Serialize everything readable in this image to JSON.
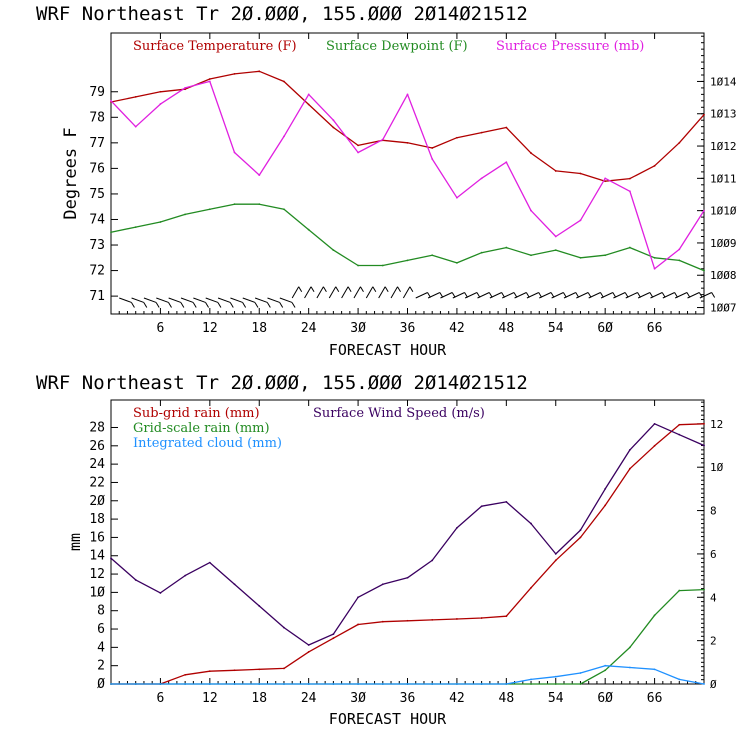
{
  "chart_data": [
    {
      "type": "line",
      "title": "WRF  Northeast Tr  20.000, 155.000  2014021512",
      "xlabel": "FORECAST HOUR",
      "ylabel": "Degrees F",
      "xlim": [
        0,
        72
      ],
      "ylim": [
        70.3,
        81.3
      ],
      "y2lim": [
        1006.8,
        1015.5
      ],
      "xticks": [
        6,
        12,
        18,
        24,
        30,
        36,
        42,
        48,
        54,
        60,
        66
      ],
      "yticks": [
        71,
        72,
        73,
        74,
        75,
        76,
        77,
        78,
        79
      ],
      "y2ticks": [
        1007,
        1008,
        1009,
        1010,
        1011,
        1012,
        1013,
        1014
      ],
      "x": [
        0,
        3,
        6,
        9,
        12,
        15,
        18,
        21,
        24,
        27,
        30,
        33,
        36,
        39,
        42,
        45,
        48,
        51,
        54,
        57,
        60,
        63,
        66,
        69,
        72
      ],
      "series": [
        {
          "name": "Surface Temperature (F)",
          "color": "#b00000",
          "axis": "left",
          "values": [
            78.6,
            78.8,
            79.0,
            79.1,
            79.5,
            79.7,
            79.8,
            79.4,
            78.5,
            77.6,
            76.9,
            77.1,
            77.0,
            76.8,
            77.2,
            77.4,
            77.6,
            76.6,
            75.9,
            75.8,
            75.5,
            75.6,
            76.1,
            77.0,
            78.1
          ]
        },
        {
          "name": "Surface Dewpoint (F)",
          "color": "#228b22",
          "axis": "left",
          "values": [
            73.5,
            73.7,
            73.9,
            74.2,
            74.4,
            74.6,
            74.6,
            74.4,
            73.6,
            72.8,
            72.2,
            72.2,
            72.4,
            72.6,
            72.3,
            72.7,
            72.9,
            72.6,
            72.8,
            72.5,
            72.6,
            72.9,
            72.5,
            72.4,
            72.0
          ]
        },
        {
          "name": "Surface Pressure (mb)",
          "color": "#e020e0",
          "axis": "right",
          "values": [
            1013.4,
            1012.6,
            1013.3,
            1013.8,
            1014.0,
            1011.8,
            1011.1,
            1012.3,
            1013.6,
            1012.8,
            1011.8,
            1012.2,
            1013.6,
            1011.6,
            1010.4,
            1011.0,
            1011.5,
            1010.0,
            1009.2,
            1009.7,
            1011.0,
            1010.6,
            1008.2,
            1008.8,
            1010.0
          ]
        }
      ]
    },
    {
      "type": "line",
      "title": "WRF  Northeast Tr  20.000, 155.000  2014021512",
      "xlabel": "FORECAST HOUR",
      "ylabel": "mm",
      "xlim": [
        0,
        72
      ],
      "ylim": [
        0,
        31
      ],
      "y2lim": [
        0,
        13.1
      ],
      "xticks": [
        6,
        12,
        18,
        24,
        30,
        36,
        42,
        48,
        54,
        60,
        66
      ],
      "yticks": [
        0,
        2,
        4,
        6,
        8,
        10,
        12,
        14,
        16,
        18,
        20,
        22,
        24,
        26,
        28
      ],
      "y2ticks": [
        0,
        2,
        4,
        6,
        8,
        10,
        12
      ],
      "x": [
        0,
        3,
        6,
        9,
        12,
        15,
        18,
        21,
        24,
        27,
        30,
        33,
        36,
        39,
        42,
        45,
        48,
        51,
        54,
        57,
        60,
        63,
        66,
        69,
        72
      ],
      "series": [
        {
          "name": "Sub-grid rain (mm)",
          "color": "#b00000",
          "axis": "left",
          "values": [
            0,
            0,
            0,
            1.0,
            1.4,
            1.5,
            1.6,
            1.7,
            3.5,
            5.0,
            6.5,
            6.8,
            6.9,
            7.0,
            7.1,
            7.2,
            7.4,
            10.5,
            13.5,
            16.0,
            19.5,
            23.5,
            26.0,
            28.3,
            28.4
          ]
        },
        {
          "name": "Grid-scale rain (mm)",
          "color": "#228b22",
          "axis": "left",
          "values": [
            0,
            0,
            0,
            0,
            0,
            0,
            0,
            0,
            0,
            0,
            0,
            0,
            0,
            0,
            0,
            0,
            0,
            0,
            0,
            0,
            1.5,
            4.0,
            7.5,
            10.2,
            10.3
          ]
        },
        {
          "name": "Integrated cloud (mm)",
          "color": "#1e90ff",
          "axis": "left",
          "values": [
            0,
            0,
            0,
            0,
            0,
            0,
            0,
            0,
            0,
            0,
            0,
            0,
            0,
            0,
            0,
            0,
            0,
            0.5,
            0.8,
            1.2,
            2.0,
            1.8,
            1.6,
            0.5,
            0
          ]
        },
        {
          "name": "Surface Wind Speed (m/s)",
          "color": "#3a0060",
          "axis": "right",
          "values": [
            5.8,
            4.8,
            4.2,
            5.0,
            5.6,
            4.6,
            3.6,
            2.6,
            1.8,
            2.3,
            4.0,
            4.6,
            4.9,
            5.7,
            7.2,
            8.2,
            8.4,
            7.4,
            6.0,
            7.1,
            9.0,
            10.8,
            12.0,
            11.5,
            11.0
          ]
        }
      ]
    }
  ]
}
